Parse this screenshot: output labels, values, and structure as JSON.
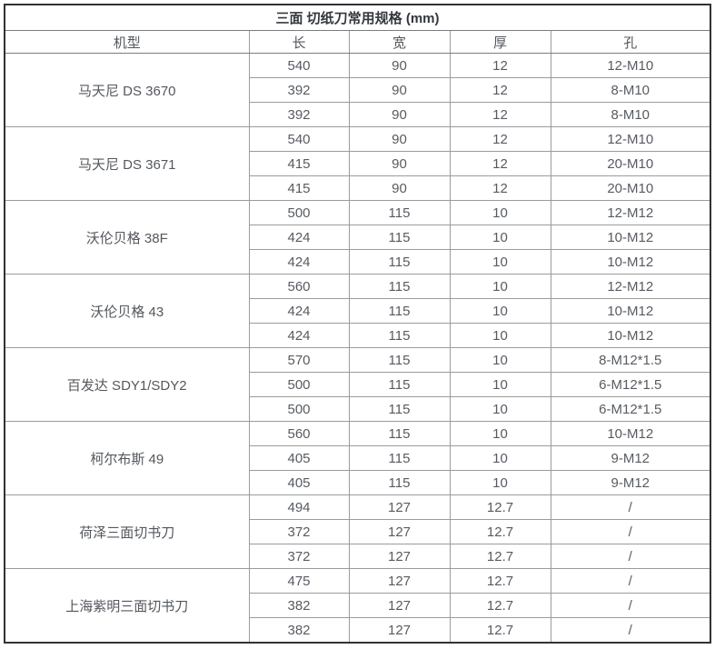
{
  "table": {
    "title": "三面 切纸刀常用规格 (mm)",
    "columns": [
      "机型",
      "长",
      "宽",
      "厚",
      "孔"
    ],
    "groups": [
      {
        "machine": "马天尼 DS 3670",
        "rows": [
          [
            "540",
            "90",
            "12",
            "12-M10"
          ],
          [
            "392",
            "90",
            "12",
            "8-M10"
          ],
          [
            "392",
            "90",
            "12",
            "8-M10"
          ]
        ]
      },
      {
        "machine": "马天尼 DS 3671",
        "rows": [
          [
            "540",
            "90",
            "12",
            "12-M10"
          ],
          [
            "415",
            "90",
            "12",
            "20-M10"
          ],
          [
            "415",
            "90",
            "12",
            "20-M10"
          ]
        ]
      },
      {
        "machine": "沃伦贝格 38F",
        "rows": [
          [
            "500",
            "115",
            "10",
            "12-M12"
          ],
          [
            "424",
            "115",
            "10",
            "10-M12"
          ],
          [
            "424",
            "115",
            "10",
            "10-M12"
          ]
        ]
      },
      {
        "machine": "沃伦贝格 43",
        "rows": [
          [
            "560",
            "115",
            "10",
            "12-M12"
          ],
          [
            "424",
            "115",
            "10",
            "10-M12"
          ],
          [
            "424",
            "115",
            "10",
            "10-M12"
          ]
        ]
      },
      {
        "machine": "百发达 SDY1/SDY2",
        "rows": [
          [
            "570",
            "115",
            "10",
            "8-M12*1.5"
          ],
          [
            "500",
            "115",
            "10",
            "6-M12*1.5"
          ],
          [
            "500",
            "115",
            "10",
            "6-M12*1.5"
          ]
        ]
      },
      {
        "machine": "柯尔布斯 49",
        "rows": [
          [
            "560",
            "115",
            "10",
            "10-M12"
          ],
          [
            "405",
            "115",
            "10",
            "9-M12"
          ],
          [
            "405",
            "115",
            "10",
            "9-M12"
          ]
        ]
      },
      {
        "machine": "荷泽三面切书刀",
        "rows": [
          [
            "494",
            "127",
            "12.7",
            "/"
          ],
          [
            "372",
            "127",
            "12.7",
            "/"
          ],
          [
            "372",
            "127",
            "12.7",
            "/"
          ]
        ]
      },
      {
        "machine": "上海紫明三面切书刀",
        "rows": [
          [
            "475",
            "127",
            "12.7",
            "/"
          ],
          [
            "382",
            "127",
            "12.7",
            "/"
          ],
          [
            "382",
            "127",
            "12.7",
            "/"
          ]
        ]
      }
    ],
    "colors": {
      "outer_border": "#323236",
      "inner_border": "#9b9b9b",
      "group_border": "#7d7d7d",
      "title_text": "#34383e",
      "cell_text": "#575b61",
      "background": "#ffffff"
    }
  }
}
